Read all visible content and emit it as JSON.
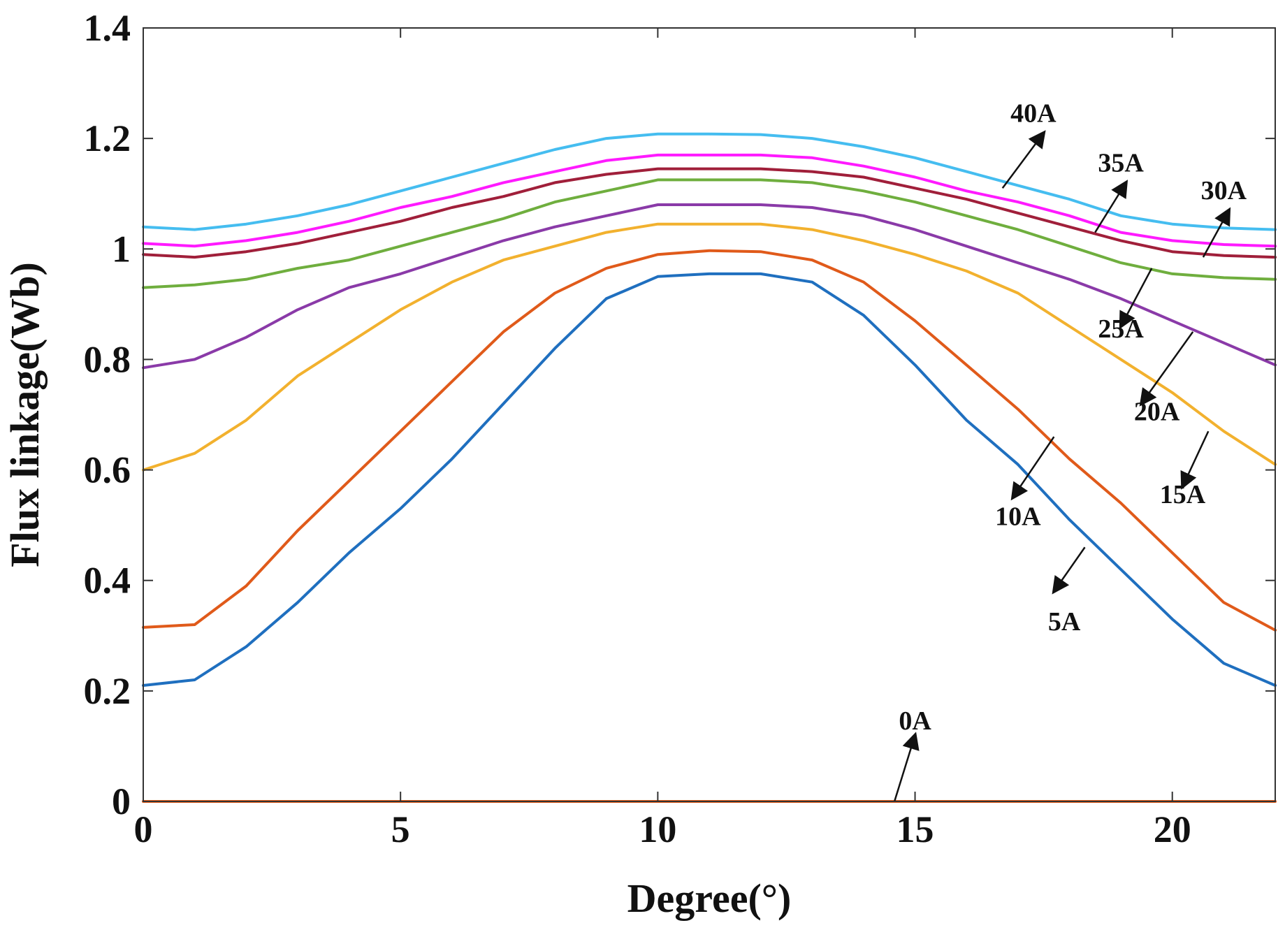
{
  "chart_data": {
    "type": "line",
    "title": "",
    "xlabel": "Degree(°)",
    "ylabel": "Flux linkage(Wb)",
    "xlim": [
      0,
      22
    ],
    "ylim": [
      0,
      1.4
    ],
    "xticks": [
      0,
      5,
      10,
      15,
      20
    ],
    "xtick_labels": [
      "0",
      "5",
      "10",
      "15",
      "20"
    ],
    "yticks": [
      0,
      0.2,
      0.4,
      0.6,
      0.8,
      1.0,
      1.2,
      1.4
    ],
    "ytick_labels": [
      "0",
      "0.2",
      "0.4",
      "0.6",
      "0.8",
      "1",
      "1.2",
      "1.4"
    ],
    "grid": false,
    "legend": "none",
    "x": [
      0,
      1,
      2,
      3,
      4,
      5,
      6,
      7,
      8,
      9,
      10,
      11,
      12,
      13,
      14,
      15,
      16,
      17,
      18,
      19,
      20,
      21,
      22
    ],
    "series": [
      {
        "color": "#e8601c",
        "values": [
          0,
          0,
          0,
          0,
          0,
          0,
          0,
          0,
          0,
          0,
          0,
          0,
          0,
          0,
          0,
          0,
          0,
          0,
          0,
          0,
          0,
          0,
          0
        ]
      },
      {
        "color": "#1f6fbf",
        "values": [
          0.21,
          0.22,
          0.28,
          0.36,
          0.45,
          0.53,
          0.62,
          0.72,
          0.82,
          0.91,
          0.95,
          0.955,
          0.955,
          0.94,
          0.88,
          0.79,
          0.69,
          0.61,
          0.51,
          0.42,
          0.33,
          0.25,
          0.21
        ]
      },
      {
        "color": "#e05a1a",
        "values": [
          0.315,
          0.32,
          0.39,
          0.49,
          0.58,
          0.67,
          0.76,
          0.85,
          0.92,
          0.965,
          0.99,
          0.997,
          0.995,
          0.98,
          0.94,
          0.87,
          0.79,
          0.71,
          0.62,
          0.54,
          0.45,
          0.36,
          0.31
        ]
      },
      {
        "color": "#f2b12e",
        "values": [
          0.6,
          0.63,
          0.69,
          0.77,
          0.83,
          0.89,
          0.94,
          0.98,
          1.005,
          1.03,
          1.045,
          1.045,
          1.045,
          1.035,
          1.015,
          0.99,
          0.96,
          0.92,
          0.86,
          0.8,
          0.74,
          0.67,
          0.61
        ]
      },
      {
        "color": "#8a3aa8",
        "values": [
          0.785,
          0.8,
          0.84,
          0.89,
          0.93,
          0.955,
          0.985,
          1.015,
          1.04,
          1.06,
          1.08,
          1.08,
          1.08,
          1.075,
          1.06,
          1.035,
          1.005,
          0.975,
          0.945,
          0.91,
          0.87,
          0.83,
          0.79
        ]
      },
      {
        "color": "#6fae3e",
        "values": [
          0.93,
          0.935,
          0.945,
          0.965,
          0.98,
          1.005,
          1.03,
          1.055,
          1.085,
          1.105,
          1.125,
          1.125,
          1.125,
          1.12,
          1.105,
          1.085,
          1.06,
          1.035,
          1.005,
          0.975,
          0.955,
          0.948,
          0.945
        ]
      },
      {
        "color": "#a01f3a",
        "values": [
          0.99,
          0.985,
          0.995,
          1.01,
          1.03,
          1.05,
          1.075,
          1.095,
          1.12,
          1.135,
          1.145,
          1.145,
          1.145,
          1.14,
          1.13,
          1.11,
          1.09,
          1.065,
          1.04,
          1.015,
          0.995,
          0.988,
          0.985
        ]
      },
      {
        "color": "#ff1aff",
        "values": [
          1.01,
          1.005,
          1.015,
          1.03,
          1.05,
          1.075,
          1.095,
          1.12,
          1.14,
          1.16,
          1.17,
          1.17,
          1.17,
          1.165,
          1.15,
          1.13,
          1.105,
          1.085,
          1.06,
          1.03,
          1.015,
          1.008,
          1.005
        ]
      },
      {
        "color": "#45bdf0",
        "values": [
          1.04,
          1.035,
          1.045,
          1.06,
          1.08,
          1.105,
          1.13,
          1.155,
          1.18,
          1.2,
          1.208,
          1.208,
          1.207,
          1.2,
          1.185,
          1.165,
          1.14,
          1.115,
          1.09,
          1.06,
          1.045,
          1.038,
          1.035
        ]
      }
    ],
    "annotations": [
      {
        "text": "0A",
        "x": 15.0,
        "y": 0.13,
        "arrow_from": [
          14.6,
          0.0
        ],
        "arrow_to": [
          15.0,
          0.12
        ]
      },
      {
        "text": "5A",
        "x": 17.9,
        "y": 0.31,
        "arrow_from": [
          18.3,
          0.46
        ],
        "arrow_to": [
          17.7,
          0.38
        ]
      },
      {
        "text": "10A",
        "x": 17.0,
        "y": 0.5,
        "arrow_from": [
          17.7,
          0.66
        ],
        "arrow_to": [
          16.9,
          0.55
        ]
      },
      {
        "text": "15A",
        "x": 20.2,
        "y": 0.54,
        "arrow_from": [
          20.7,
          0.67
        ],
        "arrow_to": [
          20.2,
          0.57
        ]
      },
      {
        "text": "20A",
        "x": 19.7,
        "y": 0.69,
        "arrow_from": [
          20.4,
          0.85
        ],
        "arrow_to": [
          19.4,
          0.72
        ]
      },
      {
        "text": "25A",
        "x": 19.0,
        "y": 0.84,
        "arrow_from": [
          19.6,
          0.965
        ],
        "arrow_to": [
          19.0,
          0.86
        ]
      },
      {
        "text": "30A",
        "x": 21.0,
        "y": 1.09,
        "arrow_from": [
          20.6,
          0.985
        ],
        "arrow_to": [
          21.1,
          1.07
        ]
      },
      {
        "text": "35A",
        "x": 19.0,
        "y": 1.14,
        "arrow_from": [
          18.5,
          1.03
        ],
        "arrow_to": [
          19.1,
          1.12
        ]
      },
      {
        "text": "40A",
        "x": 17.3,
        "y": 1.23,
        "arrow_from": [
          16.7,
          1.11
        ],
        "arrow_to": [
          17.5,
          1.21
        ]
      }
    ]
  }
}
